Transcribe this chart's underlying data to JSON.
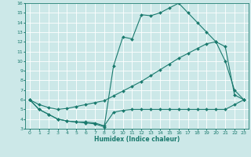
{
  "xlabel": "Humidex (Indice chaleur)",
  "bg_color": "#cce8e8",
  "line_color": "#1a7a6e",
  "grid_color": "#ffffff",
  "xlim": [
    -0.5,
    23.5
  ],
  "ylim": [
    3,
    16
  ],
  "xticks": [
    0,
    1,
    2,
    3,
    4,
    5,
    6,
    7,
    8,
    9,
    10,
    11,
    12,
    13,
    14,
    15,
    16,
    17,
    18,
    19,
    20,
    21,
    22,
    23
  ],
  "yticks": [
    3,
    4,
    5,
    6,
    7,
    8,
    9,
    10,
    11,
    12,
    13,
    14,
    15,
    16
  ],
  "line1_x": [
    0,
    1,
    2,
    3,
    4,
    5,
    6,
    7,
    8,
    9,
    10,
    11,
    12,
    13,
    14,
    15,
    16,
    17,
    18,
    19,
    20,
    21,
    22,
    23
  ],
  "line1_y": [
    6.0,
    5.0,
    4.5,
    4.0,
    3.8,
    3.7,
    3.6,
    3.5,
    3.2,
    9.5,
    12.5,
    12.3,
    14.8,
    14.7,
    15.0,
    15.5,
    16.0,
    15.0,
    14.0,
    13.0,
    12.0,
    10.0,
    7.0,
    6.0
  ],
  "line2_x": [
    0,
    1,
    2,
    3,
    4,
    5,
    6,
    7,
    8,
    9,
    10,
    11,
    12,
    13,
    14,
    15,
    16,
    17,
    18,
    19,
    20,
    21,
    22,
    23
  ],
  "line2_y": [
    6.0,
    5.5,
    5.2,
    5.0,
    5.1,
    5.3,
    5.5,
    5.7,
    5.9,
    6.4,
    6.9,
    7.4,
    7.9,
    8.5,
    9.1,
    9.7,
    10.3,
    10.8,
    11.3,
    11.8,
    12.0,
    11.5,
    6.5,
    6.0
  ],
  "line3_x": [
    0,
    1,
    2,
    3,
    4,
    5,
    6,
    7,
    8,
    9,
    10,
    11,
    12,
    13,
    14,
    15,
    16,
    17,
    18,
    19,
    20,
    21,
    22,
    23
  ],
  "line3_y": [
    6.0,
    5.0,
    4.5,
    4.0,
    3.8,
    3.7,
    3.7,
    3.6,
    3.3,
    4.7,
    4.9,
    5.0,
    5.0,
    5.0,
    5.0,
    5.0,
    5.0,
    5.0,
    5.0,
    5.0,
    5.0,
    5.0,
    5.5,
    6.0
  ],
  "xlabel_fontsize": 5.5,
  "tick_fontsize": 4.5,
  "lw": 0.8,
  "markersize": 2.0
}
